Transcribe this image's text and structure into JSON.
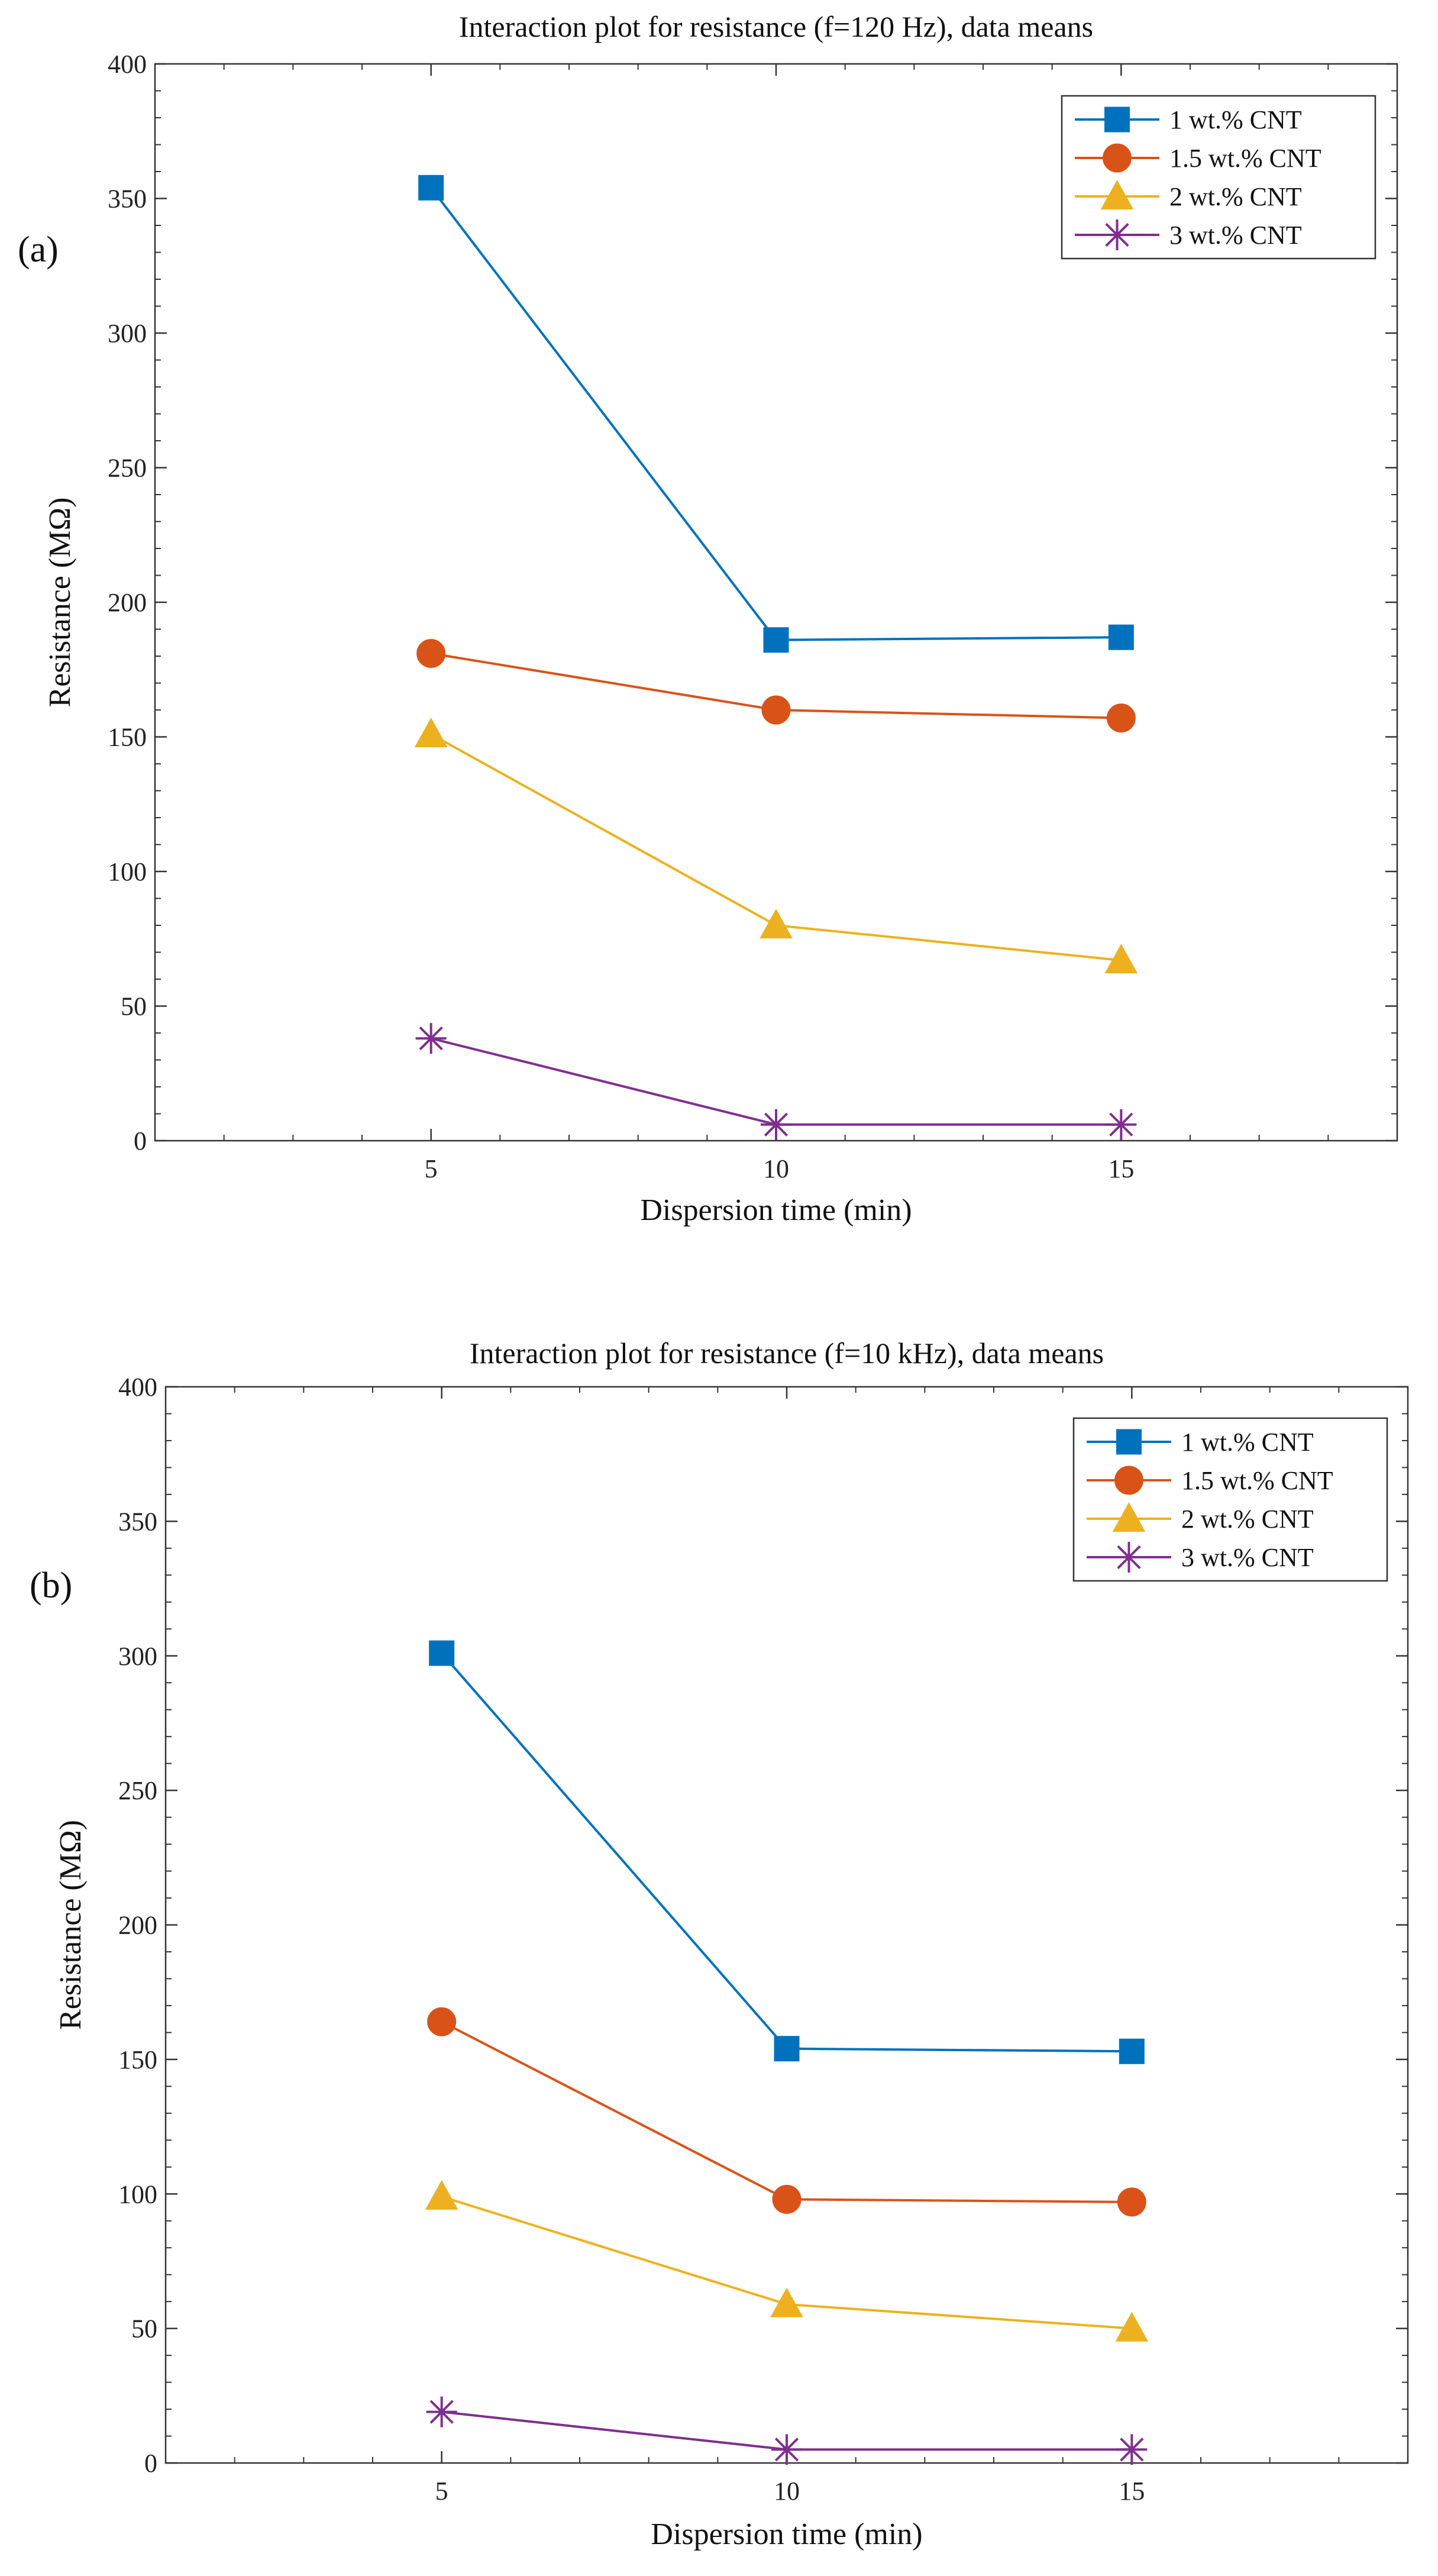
{
  "chart_data": [
    {
      "type": "line",
      "panel_label": "(a)",
      "title": "Interaction plot for resistance (f=120 Hz), data means",
      "xlabel": "Dispersion time (min)",
      "ylabel": "Resistance (MΩ)",
      "x": [
        5,
        10,
        15
      ],
      "x_ticks": [
        "5",
        "10",
        "15"
      ],
      "xlim": [
        1,
        19
      ],
      "ylim": [
        0,
        400
      ],
      "y_ticks": [
        "0",
        "50",
        "100",
        "150",
        "200",
        "250",
        "300",
        "350",
        "400"
      ],
      "legend_position": "top-right",
      "series": [
        {
          "name": "1 wt.% CNT",
          "values": [
            354,
            186,
            187
          ],
          "color": "#0072bd",
          "marker": "square"
        },
        {
          "name": "1.5 wt.% CNT",
          "values": [
            181,
            160,
            157
          ],
          "color": "#d95319",
          "marker": "circle"
        },
        {
          "name": "2 wt.% CNT",
          "values": [
            151,
            80,
            67
          ],
          "color": "#edb120",
          "marker": "triangle"
        },
        {
          "name": "3 wt.% CNT",
          "values": [
            38,
            6,
            6
          ],
          "color": "#7e2f8e",
          "marker": "asterisk"
        }
      ]
    },
    {
      "type": "line",
      "panel_label": "(b)",
      "title": "Interaction plot for resistance (f=10 kHz), data means",
      "xlabel": "Dispersion time (min)",
      "ylabel": "Resistance (MΩ)",
      "x": [
        5,
        10,
        15
      ],
      "x_ticks": [
        "5",
        "10",
        "15"
      ],
      "xlim": [
        1,
        19
      ],
      "ylim": [
        0,
        400
      ],
      "y_ticks": [
        "0",
        "50",
        "100",
        "150",
        "200",
        "250",
        "300",
        "350",
        "400"
      ],
      "legend_position": "top-right",
      "series": [
        {
          "name": "1 wt.% CNT",
          "values": [
            301,
            154,
            153
          ],
          "color": "#0072bd",
          "marker": "square"
        },
        {
          "name": "1.5 wt.% CNT",
          "values": [
            164,
            98,
            97
          ],
          "color": "#d95319",
          "marker": "circle"
        },
        {
          "name": "2 wt.% CNT",
          "values": [
            99,
            59,
            50
          ],
          "color": "#edb120",
          "marker": "triangle"
        },
        {
          "name": "3 wt.% CNT",
          "values": [
            19,
            5,
            5
          ],
          "color": "#7e2f8e",
          "marker": "asterisk"
        }
      ]
    }
  ]
}
